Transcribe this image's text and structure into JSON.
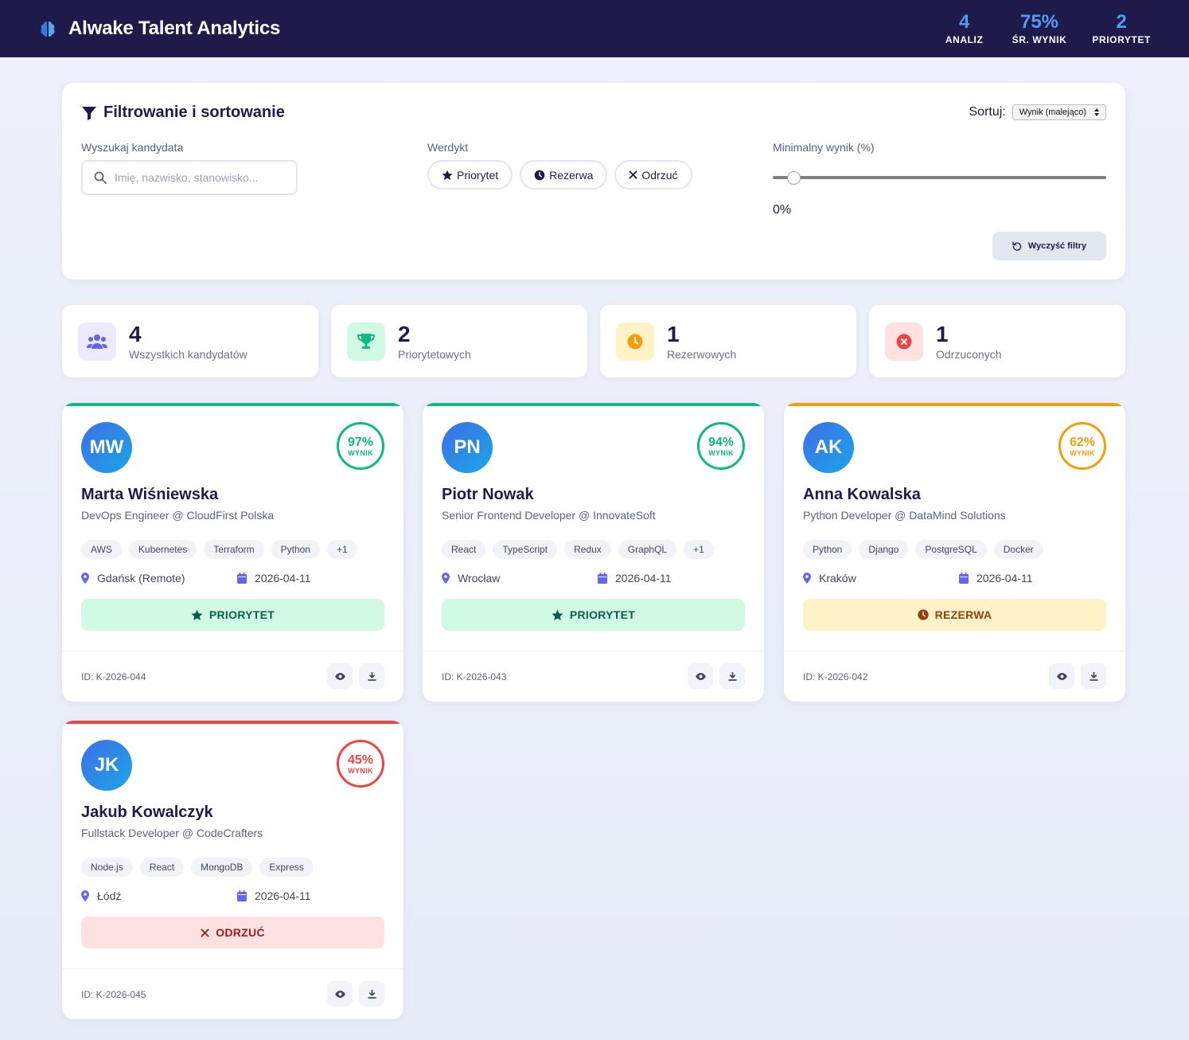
{
  "header": {
    "title": "Alwake Talent Analytics",
    "stats": [
      {
        "value": "4",
        "label": "ANALIZ"
      },
      {
        "value": "75%",
        "label": "ŚR. WYNIK"
      },
      {
        "value": "2",
        "label": "PRIORYTET"
      }
    ]
  },
  "filters": {
    "title": "Filtrowanie i sortowanie",
    "sort_label": "Sortuj:",
    "sort_value": "Wynik (malejąco)",
    "search_label": "Wyszukaj kandydata",
    "search_placeholder": "Imię, nazwisko, stanowisko...",
    "verdict_label": "Werdykt",
    "verdicts": [
      "Priorytet",
      "Rezerwa",
      "Odrzuć"
    ],
    "min_score_label": "Minimalny wynik (%)",
    "min_score_value": "0%",
    "clear_label": "Wyczyść filtry"
  },
  "summary": [
    {
      "value": "4",
      "label": "Wszystkich kandydatów",
      "icon": "users-icon",
      "color": "#6366f1",
      "bg": "#ede9fe"
    },
    {
      "value": "2",
      "label": "Priorytetowych",
      "icon": "trophy-icon",
      "color": "#10b981",
      "bg": "#d1fae5"
    },
    {
      "value": "1",
      "label": "Rezerwowych",
      "icon": "clock-icon",
      "color": "#f59e0b",
      "bg": "#fef3c7"
    },
    {
      "value": "1",
      "label": "Odrzuconych",
      "icon": "x-circle-icon",
      "color": "#ef4444",
      "bg": "#fee2e2"
    }
  ],
  "score_word": "WYNIK",
  "candidates": [
    {
      "initials": "MW",
      "name": "Marta Wiśniewska",
      "role": "DevOps Engineer @ CloudFirst Polska",
      "score": "97%",
      "tags": [
        "AWS",
        "Kubernetes",
        "Terraform",
        "Python",
        "+1"
      ],
      "location": "Gdańsk (Remote)",
      "date": "2026-04-11",
      "verdict": "PRIORYTET",
      "id": "ID: K-2026-044"
    },
    {
      "initials": "PN",
      "name": "Piotr Nowak",
      "role": "Senior Frontend Developer @ InnovateSoft",
      "score": "94%",
      "tags": [
        "React",
        "TypeScript",
        "Redux",
        "GraphQL",
        "+1"
      ],
      "location": "Wrocław",
      "date": "2026-04-11",
      "verdict": "PRIORYTET",
      "id": "ID: K-2026-043"
    },
    {
      "initials": "AK",
      "name": "Anna Kowalska",
      "role": "Python Developer @ DataMind Solutions",
      "score": "62%",
      "tags": [
        "Python",
        "Django",
        "PostgreSQL",
        "Docker"
      ],
      "location": "Kraków",
      "date": "2026-04-11",
      "verdict": "REZERWA",
      "id": "ID: K-2026-042"
    },
    {
      "initials": "JK",
      "name": "Jakub Kowalczyk",
      "role": "Fullstack Developer @ CodeCrafters",
      "score": "45%",
      "tags": [
        "Node.js",
        "React",
        "MongoDB",
        "Express"
      ],
      "location": "Łódź",
      "date": "2026-04-11",
      "verdict": "ODRZUĆ",
      "id": "ID: K-2026-045"
    }
  ],
  "colors": {
    "priority": "#10b981",
    "reserve": "#f59e0b",
    "reject": "#ef4444",
    "navy": "#1e1b4b",
    "accent": "#4f9cf5"
  }
}
